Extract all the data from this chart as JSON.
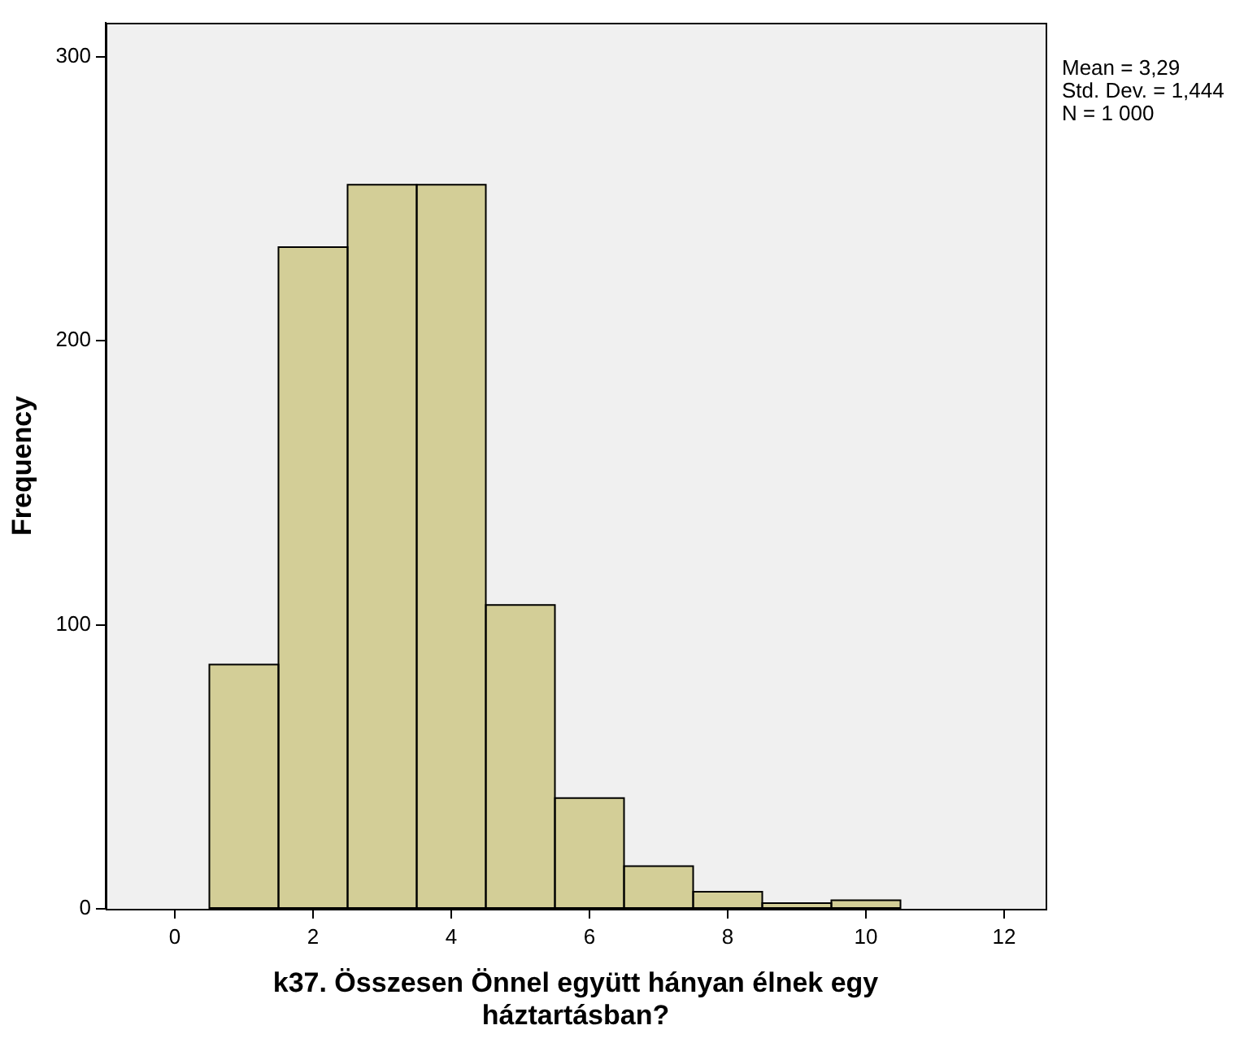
{
  "chart_data": {
    "type": "histogram",
    "xlabel": "k37. Összesen Önnel együtt hányan élnek egy háztartásban?",
    "ylabel": "Frequency",
    "bins": [
      0.5,
      1.5,
      2.5,
      3.5,
      4.5,
      5.5,
      6.5,
      7.5,
      8.5,
      9.5,
      10.5
    ],
    "values": [
      86,
      233,
      255,
      255,
      107,
      39,
      15,
      6,
      2,
      3
    ],
    "color": "#d3ce97",
    "xlim": [
      -1,
      12.6
    ],
    "xticks": [
      0,
      2,
      4,
      6,
      8,
      10,
      12
    ],
    "ylim": [
      0,
      312
    ],
    "yticks": [
      0,
      100,
      200,
      300
    ],
    "annotations": [
      "Mean = 3,29",
      "Std. Dev. = 1,444",
      "N = 1 000"
    ]
  }
}
